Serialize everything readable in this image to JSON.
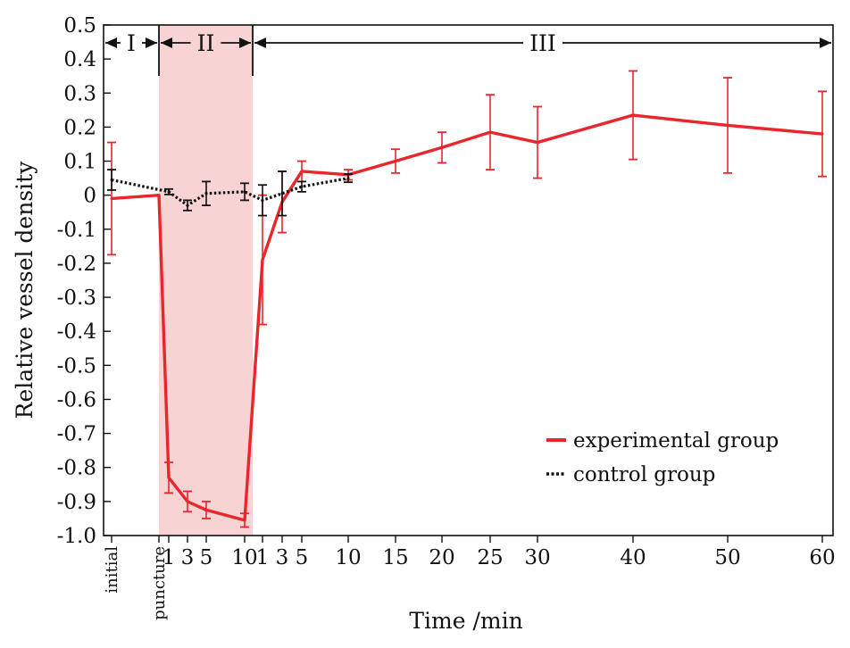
{
  "chart_data": {
    "type": "line",
    "ylabel": "Relative vessel density",
    "xlabel": "Time /min",
    "ylim": [
      -1.0,
      0.5
    ],
    "yticks": [
      "0.5",
      "0.4",
      "0.3",
      "0.2",
      "0.1",
      "0",
      "-0.1",
      "-0.2",
      "-0.3",
      "-0.4",
      "-0.5",
      "-0.6",
      "-0.7",
      "-0.8",
      "-0.9",
      "-1.0"
    ],
    "ytick_values": [
      0.5,
      0.4,
      0.3,
      0.2,
      0.1,
      0,
      -0.1,
      -0.2,
      -0.3,
      -0.4,
      -0.5,
      -0.6,
      -0.7,
      -0.8,
      -0.9,
      -1.0
    ],
    "x_categories": [
      "initial",
      "puncture",
      "1",
      "3",
      "5",
      "10",
      "1",
      "3",
      "5",
      "10",
      "15",
      "20",
      "25",
      "30",
      "40",
      "50",
      "60"
    ],
    "x_rotated": [
      "initial",
      "puncture"
    ],
    "phases": [
      {
        "label": "I",
        "from": "initial",
        "to": "puncture"
      },
      {
        "label": "II",
        "from": "puncture",
        "to": "10 (phase II)",
        "shaded": true
      },
      {
        "label": "III",
        "from": "10 (phase II)",
        "to": "60"
      }
    ],
    "series": [
      {
        "name": "experimental group",
        "color": "#e8262b",
        "style": "solid",
        "points": [
          {
            "x": "initial",
            "y": -0.01,
            "err": 0.165
          },
          {
            "x": "puncture",
            "y": 0.0,
            "err": 0
          },
          {
            "x": "1 (II)",
            "y": -0.83,
            "err": 0.045
          },
          {
            "x": "3 (II)",
            "y": -0.9,
            "err": 0.03
          },
          {
            "x": "5 (II)",
            "y": -0.925,
            "err": 0.025
          },
          {
            "x": "10 (II)",
            "y": -0.955,
            "err": 0.02
          },
          {
            "x": "1 (III)",
            "y": -0.19,
            "err": 0.19
          },
          {
            "x": "3 (III)",
            "y": -0.02,
            "err": 0.09
          },
          {
            "x": "5 (III)",
            "y": 0.07,
            "err": 0.03
          },
          {
            "x": "10 (III)",
            "y": 0.06,
            "err": 0.015
          },
          {
            "x": "15",
            "y": 0.1,
            "err": 0.035
          },
          {
            "x": "20",
            "y": 0.14,
            "err": 0.045
          },
          {
            "x": "25",
            "y": 0.185,
            "err": 0.11
          },
          {
            "x": "30",
            "y": 0.155,
            "err": 0.105
          },
          {
            "x": "40",
            "y": 0.235,
            "err": 0.13
          },
          {
            "x": "50",
            "y": 0.205,
            "err": 0.14
          },
          {
            "x": "60",
            "y": 0.18,
            "err": 0.125
          }
        ]
      },
      {
        "name": "control group",
        "color": "#111111",
        "style": "dotted",
        "points": [
          {
            "x": "initial",
            "y": 0.045,
            "err": 0.03
          },
          {
            "x": "1 (II)",
            "y": 0.01,
            "err": 0.008
          },
          {
            "x": "3 (II)",
            "y": -0.03,
            "err": 0.015
          },
          {
            "x": "5 (II)",
            "y": 0.005,
            "err": 0.035
          },
          {
            "x": "10 (II)",
            "y": 0.01,
            "err": 0.025
          },
          {
            "x": "1 (III)",
            "y": -0.015,
            "err": 0.045
          },
          {
            "x": "3 (III)",
            "y": 0.005,
            "err": 0.065
          },
          {
            "x": "5 (III)",
            "y": 0.025,
            "err": 0.015
          },
          {
            "x": "10 (III)",
            "y": 0.05,
            "err": 0.012
          }
        ]
      }
    ],
    "legend": {
      "position": "bottom-right"
    }
  }
}
